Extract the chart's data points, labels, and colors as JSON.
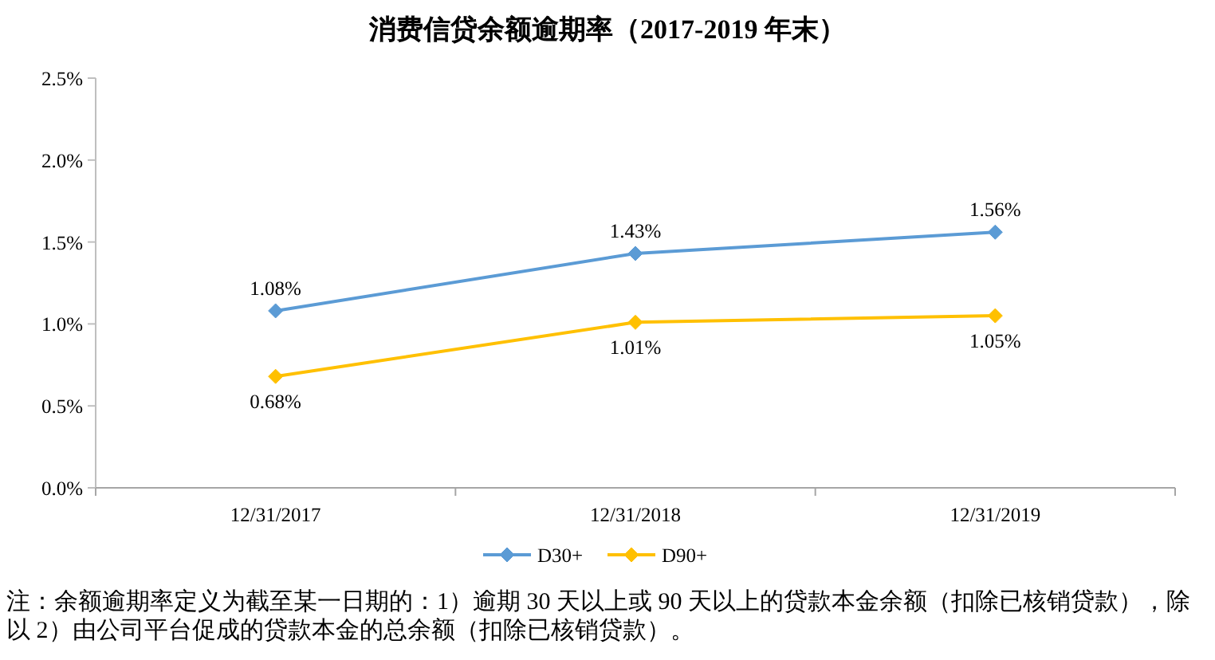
{
  "chart_data": {
    "type": "line",
    "title": "消费信贷余额逾期率（2017-2019 年末）",
    "categories": [
      "12/31/2017",
      "12/31/2018",
      "12/31/2019"
    ],
    "series": [
      {
        "name": "D30+",
        "color": "#5b9bd5",
        "values": [
          1.08,
          1.43,
          1.56
        ],
        "value_labels": [
          "1.08%",
          "1.43%",
          "1.56%"
        ]
      },
      {
        "name": "D90+",
        "color": "#ffc000",
        "values": [
          0.68,
          1.01,
          1.05
        ],
        "value_labels": [
          "0.68%",
          "1.01%",
          "1.05%"
        ]
      }
    ],
    "ylim": [
      0,
      2.5
    ],
    "yticks": [
      {
        "value": 0,
        "label": "0.0%"
      },
      {
        "value": 0.5,
        "label": "0.5%"
      },
      {
        "value": 1,
        "label": "1.0%"
      },
      {
        "value": 1.5,
        "label": "1.5%"
      },
      {
        "value": 2,
        "label": "2.0%"
      },
      {
        "value": 2.5,
        "label": "2.5%"
      }
    ],
    "marker": "diamond",
    "legend": "bottom",
    "grid": false,
    "annotations": [
      "注：余额逾期率定义为截至某一日期的：1）逾期 30 天以上或 90 天以上的贷款本金余额（扣除已核销贷款），除以 2）由公司平台促成的贷款本金的总余额（扣除已核销贷款）。"
    ]
  }
}
